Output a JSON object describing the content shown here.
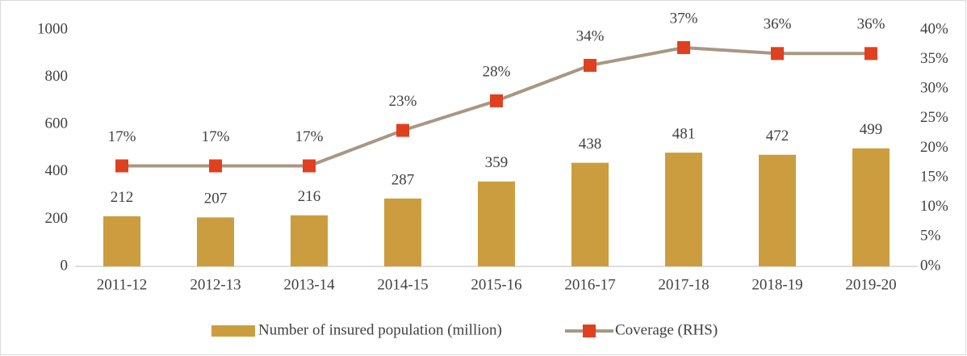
{
  "chart_data": {
    "type": "combo",
    "categories": [
      "2011-12",
      "2012-13",
      "2013-14",
      "2014-15",
      "2015-16",
      "2016-17",
      "2017-18",
      "2018-19",
      "2019-20"
    ],
    "series": [
      {
        "name": "Number of insured population (million)",
        "type": "bar",
        "color": "#cc9d3e",
        "values": [
          212,
          207,
          216,
          287,
          359,
          438,
          481,
          472,
          499
        ]
      },
      {
        "name": "Coverage (RHS)",
        "type": "line",
        "axis": "y2",
        "color": "#a89784",
        "marker_color": "#e0401f",
        "values": [
          17,
          17,
          17,
          23,
          28,
          34,
          37,
          36,
          36
        ],
        "value_labels": [
          "17%",
          "17%",
          "17%",
          "23%",
          "28%",
          "34%",
          "37%",
          "36%",
          "36%"
        ]
      }
    ],
    "ylim": [
      0,
      1000
    ],
    "yticks": [
      0,
      200,
      400,
      600,
      800,
      1000
    ],
    "y2lim": [
      0,
      40
    ],
    "y2ticks": [
      {
        "value": 0,
        "label": "0%"
      },
      {
        "value": 5,
        "label": "5%"
      },
      {
        "value": 10,
        "label": "10%"
      },
      {
        "value": 15,
        "label": "15%"
      },
      {
        "value": 20,
        "label": "20%"
      },
      {
        "value": 25,
        "label": "25%"
      },
      {
        "value": 30,
        "label": "30%"
      },
      {
        "value": 35,
        "label": "35%"
      },
      {
        "value": 40,
        "label": "40%"
      }
    ],
    "grid": false,
    "legend": "bottom"
  }
}
